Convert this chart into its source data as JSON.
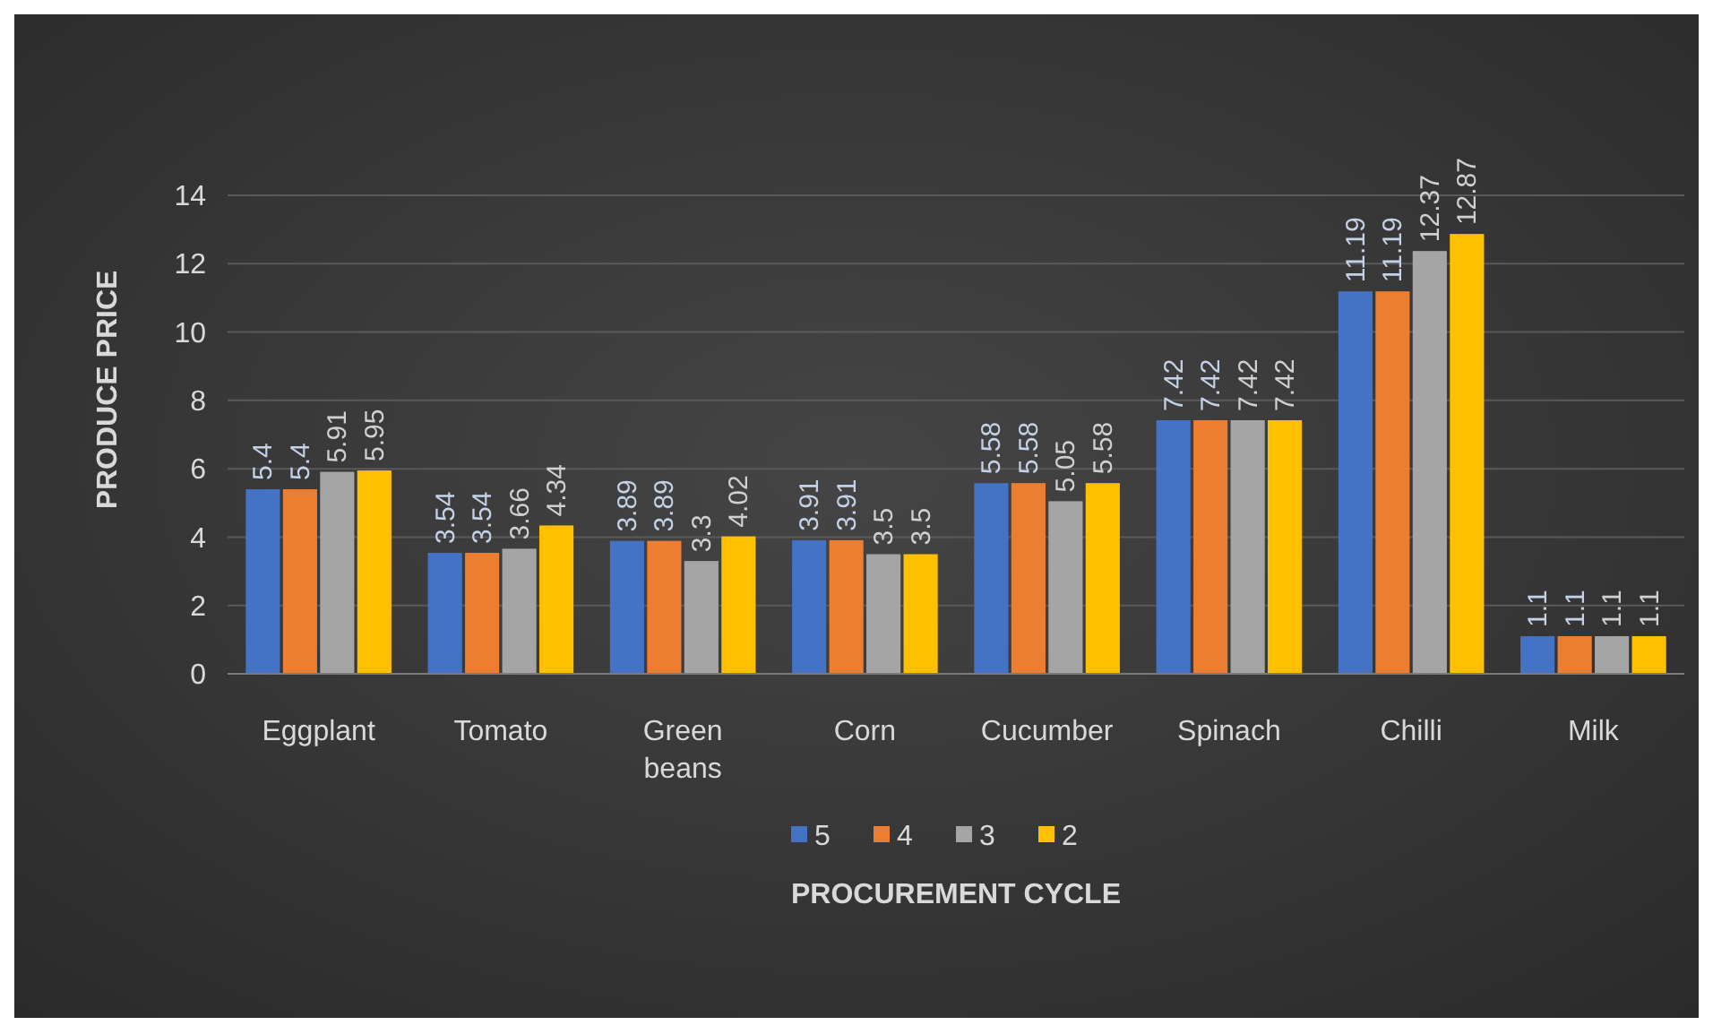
{
  "chart_data": {
    "type": "bar",
    "xlabel": "PROCUREMENT CYCLE",
    "ylabel": "PRODUCE PRICE",
    "categories": [
      "Eggplant",
      "Tomato",
      "Green beans",
      "Corn",
      "Cucumber",
      "Spinach",
      "Chilli",
      "Milk"
    ],
    "series": [
      {
        "name": "5",
        "color": "#4472c4",
        "values": [
          5.4,
          3.54,
          3.89,
          3.91,
          5.58,
          7.42,
          11.19,
          1.1
        ]
      },
      {
        "name": "4",
        "color": "#ed7d31",
        "values": [
          5.4,
          3.54,
          3.89,
          3.91,
          5.58,
          7.42,
          11.19,
          1.1
        ]
      },
      {
        "name": "3",
        "color": "#a5a5a5",
        "values": [
          5.91,
          3.66,
          3.3,
          3.5,
          5.05,
          7.42,
          12.37,
          1.1
        ]
      },
      {
        "name": "2",
        "color": "#ffc000",
        "values": [
          5.95,
          4.34,
          4.02,
          3.5,
          5.58,
          7.42,
          12.87,
          1.1
        ]
      }
    ],
    "ylim": [
      0,
      14
    ],
    "yticks": [
      0,
      2,
      4,
      6,
      8,
      10,
      12,
      14
    ],
    "grid": "y",
    "legend": "bottom",
    "data_labels": true
  }
}
